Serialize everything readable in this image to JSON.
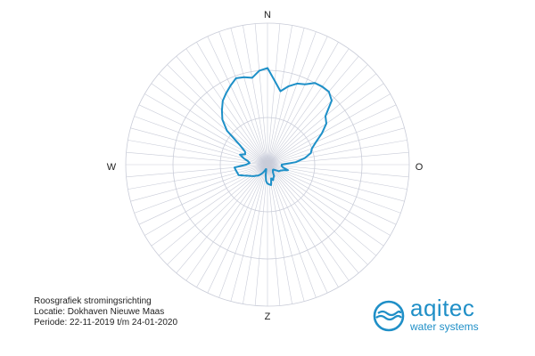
{
  "chart_data": {
    "type": "radar",
    "title": "Roosgrafiek stromingsrichting",
    "directions": [
      "N",
      "O",
      "Z",
      "W"
    ],
    "direction_step_deg": 5,
    "r_max": 3,
    "rings": [
      1,
      2,
      3
    ],
    "grid": true,
    "series": [
      {
        "color": "#1e90c8",
        "values": [
          2.05,
          1.78,
          1.58,
          1.72,
          1.83,
          1.88,
          2.0,
          2.02,
          2.02,
          1.92,
          1.6,
          1.52,
          1.33,
          1.13,
          1.0,
          0.95,
          0.8,
          0.6,
          0.3,
          0.3,
          0.33,
          0.45,
          0.35,
          0.3,
          0.28,
          0.2,
          0.16,
          0.16,
          0.18,
          0.2,
          0.28,
          0.3,
          0.35,
          0.3,
          0.44,
          0.42,
          0.4,
          0.35,
          0.22,
          0.1,
          0.1,
          0.15,
          0.2,
          0.25,
          0.3,
          0.33,
          0.38,
          0.42,
          0.47,
          0.55,
          0.65,
          0.66,
          0.68,
          0.7,
          0.45,
          0.38,
          0.42,
          0.52,
          0.62,
          0.52,
          0.55,
          0.7,
          1.12,
          1.35,
          1.5,
          1.65,
          1.75,
          1.85,
          1.95,
          1.92,
          1.87,
          2.0
        ]
      }
    ]
  },
  "compass": {
    "north": "N",
    "east": "O",
    "south": "Z",
    "west": "W"
  },
  "info": {
    "line1": "Roosgrafiek stromingsrichting",
    "line2": "Locatie: Dokhaven Nieuwe Maas",
    "line3": "Periode: 22-11-2019 t/m 24-01-2020"
  },
  "brand": {
    "name": "aqitec",
    "tagline": "water systems",
    "color": "#1f8fc7"
  }
}
